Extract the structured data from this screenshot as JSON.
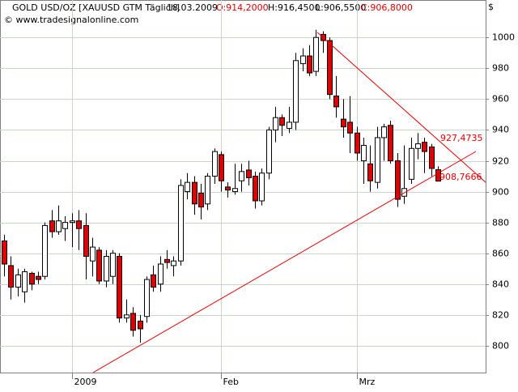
{
  "chart_data": {
    "type": "candlestick",
    "header": {
      "symbol": "GOLD USD/OZ [XAUUSD GTM  Täglich]",
      "date": "18.03.2009",
      "open": "O:914,2000",
      "high": "H:916,4500",
      "low": "L:906,5500",
      "close": "C:906,8000"
    },
    "source": "© www.tradesignalonline.com",
    "y_axis_label": "$",
    "categories": [
      null,
      null,
      null,
      null,
      null,
      null,
      null,
      null,
      null,
      null,
      "2009",
      null,
      null,
      null,
      null,
      null,
      null,
      null,
      null,
      null,
      null,
      null,
      null,
      null,
      null,
      null,
      null,
      null,
      null,
      null,
      null,
      null,
      "Feb",
      null,
      null,
      null,
      null,
      null,
      null,
      null,
      null,
      null,
      null,
      null,
      null,
      null,
      null,
      null,
      null,
      null,
      null,
      null,
      "Mrz",
      null,
      null,
      null,
      null,
      null,
      null,
      null,
      null,
      null,
      null,
      null,
      null
    ],
    "open": [
      868,
      852,
      838,
      835,
      847,
      845,
      845,
      881,
      874,
      876,
      880,
      881,
      878,
      855,
      862,
      842,
      845,
      858,
      818,
      821,
      816,
      819,
      846,
      840,
      856,
      852,
      855,
      900,
      906,
      899,
      892,
      910,
      924,
      903,
      900,
      907,
      914,
      910,
      894,
      912,
      940,
      948,
      941,
      945,
      983,
      988,
      978,
      1002,
      998,
      962,
      947,
      945,
      938,
      920,
      918,
      906,
      935,
      943,
      920,
      897,
      908,
      928,
      932,
      929,
      914.2
    ],
    "high": [
      872,
      858,
      850,
      850,
      848,
      848,
      880,
      888,
      891,
      884,
      886,
      888,
      886,
      870,
      864,
      862,
      862,
      860,
      830,
      825,
      820,
      845,
      852,
      858,
      862,
      858,
      908,
      912,
      910,
      905,
      912,
      928,
      926,
      906,
      918,
      918,
      920,
      913,
      915,
      942,
      955,
      950,
      955,
      990,
      993,
      995,
      1005,
      1004,
      1000,
      975,
      960,
      962,
      942,
      935,
      930,
      942,
      944,
      946,
      925,
      930,
      935,
      938,
      935,
      931,
      916.45
    ],
    "low": [
      845,
      830,
      832,
      828,
      836,
      840,
      843,
      870,
      872,
      868,
      864,
      862,
      843,
      845,
      840,
      838,
      840,
      815,
      815,
      806,
      802,
      815,
      835,
      835,
      850,
      845,
      852,
      895,
      885,
      882,
      888,
      905,
      900,
      896,
      898,
      900,
      904,
      889,
      891,
      908,
      932,
      936,
      938,
      940,
      978,
      975,
      975,
      990,
      960,
      948,
      935,
      925,
      920,
      905,
      900,
      902,
      920,
      918,
      890,
      892,
      905,
      921,
      912,
      910,
      906.55
    ],
    "close": [
      853,
      838,
      846,
      848,
      840,
      843,
      878,
      874,
      881,
      880,
      881,
      876,
      858,
      864,
      842,
      858,
      860,
      818,
      820,
      810,
      811,
      843,
      838,
      853,
      854,
      855,
      904,
      906,
      892,
      890,
      910,
      926,
      907,
      901,
      902,
      913,
      909,
      894,
      912,
      940,
      948,
      943,
      945,
      985,
      988,
      977,
      1000,
      998,
      963,
      955,
      942,
      938,
      925,
      930,
      907,
      935,
      942,
      920,
      895,
      902,
      928,
      931,
      926,
      915,
      906.8
    ],
    "up_color": "#ffffff",
    "down_color": "#e00000",
    "annotations": [
      "927,4735",
      "908,7666"
    ],
    "ylim": [
      782.6,
      1024.3
    ],
    "yticks": [
      800,
      820,
      840,
      860,
      880,
      900,
      920,
      940,
      960,
      980,
      1000
    ],
    "grid": true
  }
}
